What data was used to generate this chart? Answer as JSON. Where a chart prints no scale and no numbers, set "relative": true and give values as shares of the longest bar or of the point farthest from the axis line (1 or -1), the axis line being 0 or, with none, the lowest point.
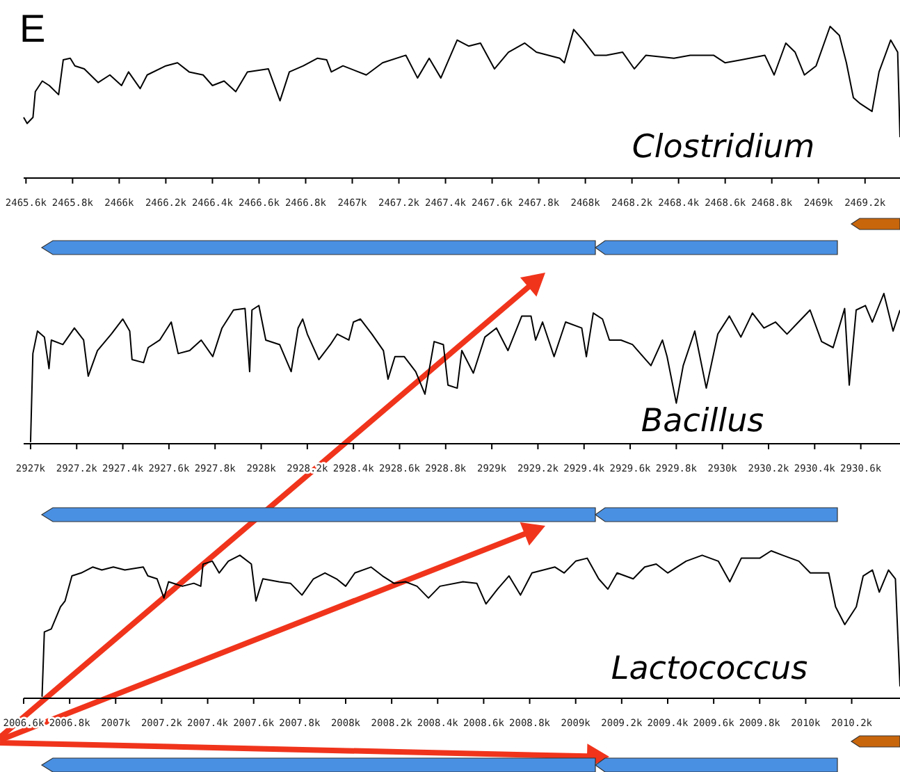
{
  "chart_data": [
    {
      "type": "line",
      "title": "Clostridium",
      "annotations": [
        "E"
      ],
      "relative": true,
      "grid": false,
      "tick_labels": "x",
      "xlim": [
        2465.59,
        2469.35
      ],
      "xticks": [
        {
          "value": 2465.6,
          "label": "2465.6k"
        },
        {
          "value": 2465.8,
          "label": "2465.8k"
        },
        {
          "value": 2466,
          "label": "2466k"
        },
        {
          "value": 2466.2,
          "label": "2466.2k"
        },
        {
          "value": 2466.4,
          "label": "2466.4k"
        },
        {
          "value": 2466.6,
          "label": "2466.6k"
        },
        {
          "value": 2466.8,
          "label": "2466.8k"
        },
        {
          "value": 2467,
          "label": "2467k"
        },
        {
          "value": 2467.2,
          "label": "2467.2k"
        },
        {
          "value": 2467.4,
          "label": "2467.4k"
        },
        {
          "value": 2467.6,
          "label": "2467.6k"
        },
        {
          "value": 2467.8,
          "label": "2467.8k"
        },
        {
          "value": 2468,
          "label": "2468k"
        },
        {
          "value": 2468.2,
          "label": "2468.2k"
        },
        {
          "value": 2468.4,
          "label": "2468.4k"
        },
        {
          "value": 2468.6,
          "label": "2468.6k"
        },
        {
          "value": 2468.8,
          "label": "2468.8k"
        },
        {
          "value": 2469,
          "label": "2469k"
        },
        {
          "value": 2469.2,
          "label": "2469.2k"
        }
      ],
      "series": [
        {
          "color": "#000000",
          "x": [
            2465.59,
            2465.605,
            2465.63,
            2465.64,
            2465.67,
            2465.7,
            2465.74,
            2465.76,
            2465.79,
            2465.81,
            2465.85,
            2465.91,
            2465.96,
            2466.01,
            2466.04,
            2466.09,
            2466.12,
            2466.2,
            2466.25,
            2466.3,
            2466.36,
            2466.4,
            2466.45,
            2466.5,
            2466.55,
            2466.64,
            2466.69,
            2466.73,
            2466.79,
            2466.85,
            2466.89,
            2466.91,
            2466.96,
            2467.06,
            2467.13,
            2467.23,
            2467.28,
            2467.33,
            2467.38,
            2467.45,
            2467.5,
            2467.55,
            2467.61,
            2467.67,
            2467.74,
            2467.79,
            2467.89,
            2467.91,
            2467.95,
            2467.99,
            2468.04,
            2468.09,
            2468.16,
            2468.21,
            2468.26,
            2468.38,
            2468.45,
            2468.55,
            2468.6,
            2468.67,
            2468.77,
            2468.81,
            2468.86,
            2468.9,
            2468.94,
            2468.99,
            2469.05,
            2469.09,
            2469.12,
            2469.15,
            2469.18,
            2469.23,
            2469.26,
            2469.31,
            2469.34,
            2469.35
          ],
          "values": [
            0.4,
            0.36,
            0.4,
            0.57,
            0.64,
            0.61,
            0.55,
            0.78,
            0.79,
            0.74,
            0.72,
            0.63,
            0.68,
            0.61,
            0.7,
            0.59,
            0.68,
            0.74,
            0.76,
            0.7,
            0.68,
            0.61,
            0.64,
            0.57,
            0.7,
            0.72,
            0.51,
            0.7,
            0.74,
            0.79,
            0.78,
            0.7,
            0.74,
            0.68,
            0.76,
            0.81,
            0.66,
            0.79,
            0.66,
            0.91,
            0.87,
            0.89,
            0.72,
            0.83,
            0.89,
            0.83,
            0.79,
            0.76,
            0.98,
            0.91,
            0.81,
            0.81,
            0.83,
            0.72,
            0.81,
            0.79,
            0.81,
            0.81,
            0.76,
            0.78,
            0.81,
            0.68,
            0.89,
            0.83,
            0.68,
            0.74,
            1,
            0.94,
            0.76,
            0.53,
            0.49,
            0.44,
            0.7,
            0.91,
            0.83,
            0.27
          ]
        }
      ]
    },
    {
      "type": "line",
      "title": "Bacillus",
      "relative": true,
      "grid": false,
      "tick_labels": "x",
      "xlim": [
        2926.97,
        2930.77
      ],
      "xticks": [
        {
          "value": 2927,
          "label": "2927k"
        },
        {
          "value": 2927.2,
          "label": "2927.2k"
        },
        {
          "value": 2927.4,
          "label": "2927.4k"
        },
        {
          "value": 2927.6,
          "label": "2927.6k"
        },
        {
          "value": 2927.8,
          "label": "2927.8k"
        },
        {
          "value": 2928,
          "label": "2928k"
        },
        {
          "value": 2928.2,
          "label": "2928.2k"
        },
        {
          "value": 2928.4,
          "label": "2928.4k"
        },
        {
          "value": 2928.6,
          "label": "2928.6k"
        },
        {
          "value": 2928.8,
          "label": "2928.8k"
        },
        {
          "value": 2929,
          "label": "2929k"
        },
        {
          "value": 2929.2,
          "label": "2929.2k"
        },
        {
          "value": 2929.4,
          "label": "2929.4k"
        },
        {
          "value": 2929.6,
          "label": "2929.6k"
        },
        {
          "value": 2929.8,
          "label": "2929.8k"
        },
        {
          "value": 2930,
          "label": "2930k"
        },
        {
          "value": 2930.2,
          "label": "2930.2k"
        },
        {
          "value": 2930.4,
          "label": "2930.4k"
        },
        {
          "value": 2930.6,
          "label": "2930.6k"
        }
      ],
      "series": [
        {
          "color": "#000000",
          "x": [
            2927.0,
            2927.01,
            2927.03,
            2927.06,
            2927.08,
            2927.09,
            2927.14,
            2927.19,
            2927.23,
            2927.25,
            2927.29,
            2927.35,
            2927.4,
            2927.43,
            2927.44,
            2927.49,
            2927.51,
            2927.56,
            2927.61,
            2927.64,
            2927.69,
            2927.74,
            2927.79,
            2927.83,
            2927.88,
            2927.93,
            2927.95,
            2927.96,
            2927.99,
            2928.02,
            2928.08,
            2928.13,
            2928.16,
            2928.18,
            2928.2,
            2928.25,
            2928.3,
            2928.33,
            2928.38,
            2928.4,
            2928.43,
            2928.48,
            2928.53,
            2928.55,
            2928.58,
            2928.62,
            2928.67,
            2928.71,
            2928.75,
            2928.79,
            2928.81,
            2928.85,
            2928.87,
            2928.92,
            2928.97,
            2929.02,
            2929.07,
            2929.13,
            2929.17,
            2929.19,
            2929.22,
            2929.27,
            2929.32,
            2929.39,
            2929.41,
            2929.44,
            2929.48,
            2929.51,
            2929.56,
            2929.61,
            2929.69,
            2929.74,
            2929.76,
            2929.8,
            2929.83,
            2929.88,
            2929.93,
            2929.98,
            2930.03,
            2930.08,
            2930.13,
            2930.18,
            2930.23,
            2930.28,
            2930.33,
            2930.38,
            2930.43,
            2930.48,
            2930.53,
            2930.55,
            2930.58,
            2930.62,
            2930.65,
            2930.7,
            2930.74,
            2930.77
          ],
          "values": [
            0.01,
            0.6,
            0.75,
            0.71,
            0.5,
            0.69,
            0.66,
            0.77,
            0.69,
            0.45,
            0.62,
            0.73,
            0.83,
            0.75,
            0.56,
            0.54,
            0.64,
            0.69,
            0.81,
            0.6,
            0.62,
            0.69,
            0.58,
            0.77,
            0.89,
            0.9,
            0.48,
            0.89,
            0.92,
            0.69,
            0.66,
            0.48,
            0.77,
            0.83,
            0.73,
            0.56,
            0.66,
            0.73,
            0.69,
            0.81,
            0.83,
            0.73,
            0.62,
            0.43,
            0.58,
            0.58,
            0.48,
            0.33,
            0.68,
            0.66,
            0.39,
            0.37,
            0.62,
            0.47,
            0.71,
            0.77,
            0.62,
            0.85,
            0.85,
            0.69,
            0.81,
            0.58,
            0.81,
            0.77,
            0.58,
            0.87,
            0.83,
            0.69,
            0.69,
            0.66,
            0.52,
            0.69,
            0.58,
            0.27,
            0.52,
            0.75,
            0.37,
            0.73,
            0.85,
            0.71,
            0.87,
            0.77,
            0.81,
            0.73,
            0.81,
            0.89,
            0.68,
            0.64,
            0.9,
            0.39,
            0.89,
            0.92,
            0.81,
            1,
            0.75,
            0.89
          ]
        }
      ]
    },
    {
      "type": "line",
      "title": "Lactococcus",
      "relative": true,
      "grid": false,
      "tick_labels": "x",
      "xlim": [
        2006.6,
        2010.41
      ],
      "xticks": [
        {
          "value": 2006.6,
          "label": "2006.6k"
        },
        {
          "value": 2006.8,
          "label": "2006.8k"
        },
        {
          "value": 2007,
          "label": "2007k"
        },
        {
          "value": 2007.2,
          "label": "2007.2k"
        },
        {
          "value": 2007.4,
          "label": "2007.4k"
        },
        {
          "value": 2007.6,
          "label": "2007.6k"
        },
        {
          "value": 2007.8,
          "label": "2007.8k"
        },
        {
          "value": 2008,
          "label": "2008k"
        },
        {
          "value": 2008.2,
          "label": "2008.2k"
        },
        {
          "value": 2008.4,
          "label": "2008.4k"
        },
        {
          "value": 2008.6,
          "label": "2008.6k"
        },
        {
          "value": 2008.8,
          "label": "2008.8k"
        },
        {
          "value": 2009,
          "label": "2009k"
        },
        {
          "value": 2009.2,
          "label": "2009.2k"
        },
        {
          "value": 2009.4,
          "label": "2009.4k"
        },
        {
          "value": 2009.6,
          "label": "2009.6k"
        },
        {
          "value": 2009.8,
          "label": "2009.8k"
        },
        {
          "value": 2010,
          "label": "2010k"
        },
        {
          "value": 2010.2,
          "label": "2010.2k"
        }
      ],
      "series": [
        {
          "color": "#000000",
          "x": [
            2006.68,
            2006.69,
            2006.72,
            2006.76,
            2006.78,
            2006.81,
            2006.85,
            2006.9,
            2006.94,
            2006.99,
            2007.04,
            2007.12,
            2007.14,
            2007.18,
            2007.21,
            2007.23,
            2007.29,
            2007.34,
            2007.37,
            2007.38,
            2007.42,
            2007.45,
            2007.49,
            2007.54,
            2007.59,
            2007.61,
            2007.64,
            2007.71,
            2007.76,
            2007.81,
            2007.86,
            2007.91,
            2007.96,
            2008.0,
            2008.04,
            2008.11,
            2008.16,
            2008.21,
            2008.26,
            2008.31,
            2008.36,
            2008.41,
            2008.51,
            2008.57,
            2008.61,
            2008.66,
            2008.71,
            2008.76,
            2008.81,
            2008.86,
            2008.91,
            2008.95,
            2009.0,
            2009.05,
            2009.1,
            2009.14,
            2009.18,
            2009.25,
            2009.3,
            2009.35,
            2009.4,
            2009.48,
            2009.55,
            2009.62,
            2009.67,
            2009.72,
            2009.8,
            2009.85,
            2009.9,
            2009.97,
            2010.02,
            2010.1,
            2010.13,
            2010.17,
            2010.22,
            2010.25,
            2010.29,
            2010.32,
            2010.36,
            2010.39,
            2010.41
          ],
          "values": [
            0.01,
            0.45,
            0.47,
            0.62,
            0.66,
            0.83,
            0.85,
            0.89,
            0.87,
            0.89,
            0.87,
            0.89,
            0.83,
            0.81,
            0.68,
            0.79,
            0.76,
            0.78,
            0.76,
            0.91,
            0.93,
            0.85,
            0.93,
            0.97,
            0.91,
            0.66,
            0.81,
            0.79,
            0.78,
            0.7,
            0.81,
            0.85,
            0.81,
            0.76,
            0.85,
            0.89,
            0.83,
            0.78,
            0.79,
            0.76,
            0.68,
            0.76,
            0.79,
            0.78,
            0.64,
            0.74,
            0.83,
            0.7,
            0.85,
            0.87,
            0.89,
            0.85,
            0.93,
            0.95,
            0.81,
            0.74,
            0.85,
            0.81,
            0.89,
            0.91,
            0.85,
            0.93,
            0.97,
            0.93,
            0.79,
            0.95,
            0.95,
            1,
            0.97,
            0.93,
            0.85,
            0.85,
            0.62,
            0.5,
            0.62,
            0.83,
            0.87,
            0.72,
            0.87,
            0.81,
            0.08
          ]
        }
      ]
    }
  ]
}
